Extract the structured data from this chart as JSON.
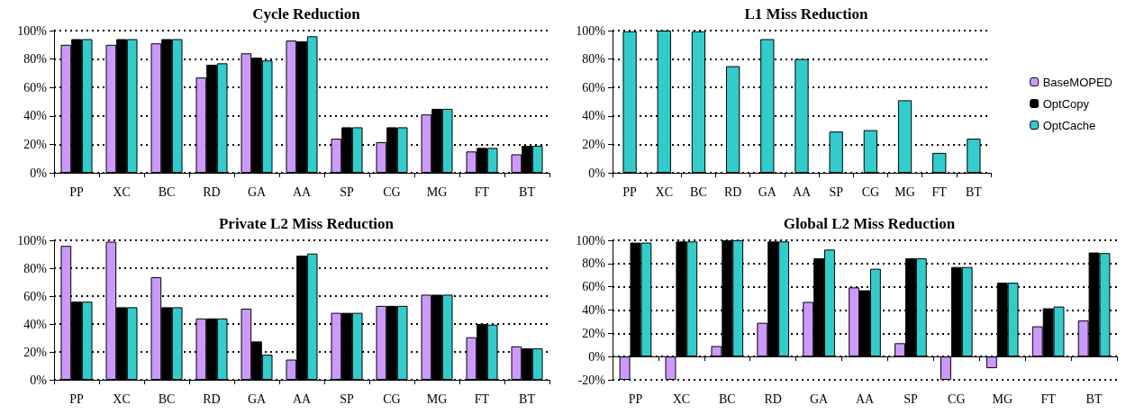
{
  "chart_data": [
    {
      "type": "bar",
      "title": "Cycle Reduction",
      "categories": [
        "PP",
        "XC",
        "BC",
        "RD",
        "GA",
        "AA",
        "SP",
        "CG",
        "MG",
        "FT",
        "BT"
      ],
      "ylim": [
        0,
        100
      ],
      "yticks": [
        {
          "value": 0,
          "label": "0%"
        },
        {
          "value": 20,
          "label": "20%"
        },
        {
          "value": 40,
          "label": "40%"
        },
        {
          "value": 60,
          "label": "60%"
        },
        {
          "value": 80,
          "label": "80%"
        },
        {
          "value": 100,
          "label": "100%"
        }
      ],
      "grid": "y",
      "series": [
        {
          "color": "#cc99ff",
          "values": [
            90,
            90,
            91,
            67,
            84,
            93,
            24,
            21.5,
            41,
            15,
            13
          ]
        },
        {
          "color": "#000000",
          "values": [
            94,
            94,
            94,
            76,
            81,
            92.5,
            32,
            32,
            45,
            17.5,
            19
          ]
        },
        {
          "color": "#33cccc",
          "values": [
            94,
            94,
            94,
            77,
            79,
            96,
            32,
            32,
            45,
            17.5,
            19
          ]
        }
      ]
    },
    {
      "type": "bar",
      "title": "L1 Miss Reduction",
      "categories": [
        "PP",
        "XC",
        "BC",
        "RD",
        "GA",
        "AA",
        "SP",
        "CG",
        "MG",
        "FT",
        "BT"
      ],
      "ylim": [
        0,
        100
      ],
      "yticks": [
        {
          "value": 0,
          "label": "0%"
        },
        {
          "value": 20,
          "label": "20%"
        },
        {
          "value": 40,
          "label": "40%"
        },
        {
          "value": 60,
          "label": "60%"
        },
        {
          "value": 80,
          "label": "80%"
        },
        {
          "value": 100,
          "label": "100%"
        }
      ],
      "grid": "y",
      "legend": "right",
      "series": [
        {
          "name": "BaseMOPED",
          "color": "#cc99ff",
          "values": [
            null,
            null,
            null,
            null,
            null,
            null,
            null,
            null,
            null,
            null,
            null
          ]
        },
        {
          "name": "OptCopy",
          "color": "#000000",
          "values": [
            null,
            null,
            null,
            null,
            null,
            null,
            null,
            null,
            null,
            null,
            null
          ]
        },
        {
          "name": "OptCache",
          "color": "#33cccc",
          "values": [
            99.5,
            100,
            99.5,
            75,
            94,
            80,
            29,
            30,
            51,
            14,
            24
          ]
        }
      ]
    },
    {
      "type": "bar",
      "title": "Private L2 Miss Reduction",
      "categories": [
        "PP",
        "XC",
        "BC",
        "RD",
        "GA",
        "AA",
        "SP",
        "CG",
        "MG",
        "FT",
        "BT"
      ],
      "ylim": [
        0,
        100
      ],
      "yticks": [
        {
          "value": 0,
          "label": "0%"
        },
        {
          "value": 20,
          "label": "20%"
        },
        {
          "value": 40,
          "label": "40%"
        },
        {
          "value": 60,
          "label": "60%"
        },
        {
          "value": 80,
          "label": "80%"
        },
        {
          "value": 100,
          "label": "100%"
        }
      ],
      "grid": "y",
      "series": [
        {
          "color": "#cc99ff",
          "values": [
            96,
            99,
            73.5,
            44,
            51,
            14.5,
            48,
            53,
            61,
            30.5,
            24
          ]
        },
        {
          "color": "#000000",
          "values": [
            56,
            52,
            52,
            44,
            27.5,
            89,
            48,
            53,
            61,
            40,
            22.5
          ]
        },
        {
          "color": "#33cccc",
          "values": [
            56,
            52,
            52,
            44,
            18,
            90.5,
            48,
            53,
            61,
            39.5,
            22.5
          ]
        }
      ]
    },
    {
      "type": "bar",
      "title": "Global L2 Miss Reduction",
      "categories": [
        "PP",
        "XC",
        "BC",
        "RD",
        "GA",
        "AA",
        "SP",
        "CG",
        "MG",
        "FT",
        "BT"
      ],
      "ylim": [
        -20,
        100
      ],
      "yticks": [
        {
          "value": -20,
          "label": "-20%"
        },
        {
          "value": 0,
          "label": "0%"
        },
        {
          "value": 20,
          "label": "20%"
        },
        {
          "value": 40,
          "label": "40%"
        },
        {
          "value": 60,
          "label": "60%"
        },
        {
          "value": 80,
          "label": "80%"
        },
        {
          "value": 100,
          "label": "100%"
        }
      ],
      "grid": "y",
      "series": [
        {
          "color": "#cc99ff",
          "values": [
            -20,
            -20,
            9,
            29,
            47,
            59.5,
            11.5,
            -20,
            -10,
            26,
            31
          ]
        },
        {
          "color": "#000000",
          "values": [
            98,
            99,
            100,
            99,
            84.5,
            57,
            84.5,
            77,
            63.5,
            41.5,
            89.5
          ]
        },
        {
          "color": "#33cccc",
          "values": [
            98,
            99,
            100,
            99,
            92,
            75.5,
            84.5,
            77,
            63.5,
            43,
            89
          ]
        }
      ]
    }
  ]
}
